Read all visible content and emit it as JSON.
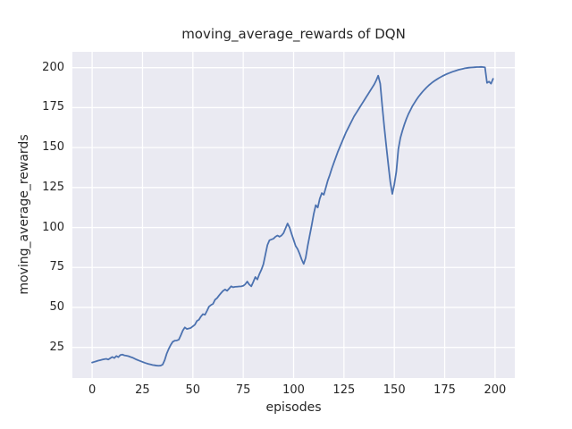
{
  "figure": {
    "background_color": "#FFFFFF",
    "panel_color": "#EAEAF2",
    "grid_color": "#FFFFFF",
    "text_color": "#262626"
  },
  "chart_data": {
    "type": "line",
    "title": "moving_average_rewards of DQN",
    "xlabel": "episodes",
    "ylabel": "moving_average_rewards",
    "x_ticks": [
      0,
      25,
      50,
      75,
      100,
      125,
      150,
      175,
      200
    ],
    "y_ticks": [
      25,
      50,
      75,
      100,
      125,
      150,
      175,
      200
    ],
    "xlim": [
      -9.8,
      209.8
    ],
    "ylim": [
      5.8,
      209.9
    ],
    "grid": true,
    "legend_position": "none",
    "series": [
      {
        "name": "moving_average_rewards",
        "color": "#4C72B0",
        "line_width": 1.8,
        "points": [
          [
            0,
            15.5
          ],
          [
            1,
            15.9
          ],
          [
            2,
            16.3
          ],
          [
            3,
            16.7
          ],
          [
            4,
            17.0
          ],
          [
            5,
            17.3
          ],
          [
            6,
            17.6
          ],
          [
            7,
            17.8
          ],
          [
            8,
            17.4
          ],
          [
            9,
            18.2
          ],
          [
            10,
            19.0
          ],
          [
            11,
            18.3
          ],
          [
            12,
            19.6
          ],
          [
            13,
            18.9
          ],
          [
            14,
            20.2
          ],
          [
            15,
            20.5
          ],
          [
            16,
            20.0
          ],
          [
            17,
            19.8
          ],
          [
            18,
            19.5
          ],
          [
            19,
            19.0
          ],
          [
            20,
            18.6
          ],
          [
            21,
            18.0
          ],
          [
            22,
            17.4
          ],
          [
            23,
            16.9
          ],
          [
            24,
            16.4
          ],
          [
            25,
            15.9
          ],
          [
            26,
            15.4
          ],
          [
            27,
            15.0
          ],
          [
            28,
            14.6
          ],
          [
            29,
            14.3
          ],
          [
            30,
            14.0
          ],
          [
            31,
            13.8
          ],
          [
            32,
            13.6
          ],
          [
            33,
            13.5
          ],
          [
            34,
            13.6
          ],
          [
            35,
            14.2
          ],
          [
            36,
            17.0
          ],
          [
            37,
            21.0
          ],
          [
            38,
            24.0
          ],
          [
            39,
            26.5
          ],
          [
            40,
            28.5
          ],
          [
            41,
            29.2
          ],
          [
            42,
            29.3
          ],
          [
            43,
            29.8
          ],
          [
            44,
            32.5
          ],
          [
            45,
            35.5
          ],
          [
            46,
            37.5
          ],
          [
            47,
            36.5
          ],
          [
            48,
            36.8
          ],
          [
            49,
            37.2
          ],
          [
            50,
            38.2
          ],
          [
            51,
            39.2
          ],
          [
            52,
            41.5
          ],
          [
            53,
            42.3
          ],
          [
            54,
            44.3
          ],
          [
            55,
            45.8
          ],
          [
            56,
            45.4
          ],
          [
            57,
            47.8
          ],
          [
            58,
            50.5
          ],
          [
            59,
            51.5
          ],
          [
            60,
            52.2
          ],
          [
            61,
            54.8
          ],
          [
            62,
            55.8
          ],
          [
            63,
            57.5
          ],
          [
            64,
            59.0
          ],
          [
            65,
            60.4
          ],
          [
            66,
            61.2
          ],
          [
            67,
            60.4
          ],
          [
            68,
            61.8
          ],
          [
            69,
            63.2
          ],
          [
            70,
            62.6
          ],
          [
            71,
            62.9
          ],
          [
            72,
            63.0
          ],
          [
            73,
            63.1
          ],
          [
            74,
            63.2
          ],
          [
            75,
            63.5
          ],
          [
            76,
            64.5
          ],
          [
            77,
            66.2
          ],
          [
            78,
            64.3
          ],
          [
            79,
            63.2
          ],
          [
            80,
            66.0
          ],
          [
            81,
            69.0
          ],
          [
            82,
            67.5
          ],
          [
            83,
            70.8
          ],
          [
            84,
            73.5
          ],
          [
            85,
            77.0
          ],
          [
            86,
            83.0
          ],
          [
            87,
            89.0
          ],
          [
            88,
            92.0
          ],
          [
            89,
            92.5
          ],
          [
            90,
            93.0
          ],
          [
            91,
            94.2
          ],
          [
            92,
            95.0
          ],
          [
            93,
            94.2
          ],
          [
            94,
            95.0
          ],
          [
            95,
            96.5
          ],
          [
            96,
            99.5
          ],
          [
            97,
            102.5
          ],
          [
            98,
            100.0
          ],
          [
            99,
            96.0
          ],
          [
            100,
            92.3
          ],
          [
            101,
            88.5
          ],
          [
            102,
            86.5
          ],
          [
            103,
            83.5
          ],
          [
            104,
            80.0
          ],
          [
            105,
            77.2
          ],
          [
            106,
            81.0
          ],
          [
            107,
            88.5
          ],
          [
            108,
            95.0
          ],
          [
            109,
            101.5
          ],
          [
            110,
            108.5
          ],
          [
            111,
            114.0
          ],
          [
            112,
            112.5
          ],
          [
            113,
            118.0
          ],
          [
            114,
            121.5
          ],
          [
            115,
            120.5
          ],
          [
            116,
            125.0
          ],
          [
            117,
            129.5
          ],
          [
            118,
            133.0
          ],
          [
            119,
            137.0
          ],
          [
            120,
            140.5
          ],
          [
            121,
            144.0
          ],
          [
            122,
            147.5
          ],
          [
            123,
            150.5
          ],
          [
            124,
            153.5
          ],
          [
            125,
            156.5
          ],
          [
            126,
            159.5
          ],
          [
            127,
            162.0
          ],
          [
            128,
            164.5
          ],
          [
            129,
            167.0
          ],
          [
            130,
            169.5
          ],
          [
            131,
            171.5
          ],
          [
            132,
            173.5
          ],
          [
            133,
            175.5
          ],
          [
            134,
            177.5
          ],
          [
            135,
            179.5
          ],
          [
            136,
            181.5
          ],
          [
            137,
            183.5
          ],
          [
            138,
            185.5
          ],
          [
            139,
            187.5
          ],
          [
            140,
            189.5
          ],
          [
            141,
            192.0
          ],
          [
            142,
            195.0
          ],
          [
            143,
            190.0
          ],
          [
            144,
            176.0
          ],
          [
            145,
            163.0
          ],
          [
            146,
            151.0
          ],
          [
            147,
            139.5
          ],
          [
            148,
            128.5
          ],
          [
            149,
            121.0
          ],
          [
            150,
            127.0
          ],
          [
            151,
            135.0
          ],
          [
            152,
            149.0
          ],
          [
            153,
            156.0
          ],
          [
            154,
            160.5
          ],
          [
            155,
            164.5
          ],
          [
            156,
            168.0
          ],
          [
            157,
            171.0
          ],
          [
            158,
            173.5
          ],
          [
            159,
            176.0
          ],
          [
            160,
            178.0
          ],
          [
            161,
            180.0
          ],
          [
            162,
            181.8
          ],
          [
            163,
            183.4
          ],
          [
            164,
            184.9
          ],
          [
            165,
            186.3
          ],
          [
            166,
            187.6
          ],
          [
            167,
            188.8
          ],
          [
            168,
            189.9
          ],
          [
            169,
            190.9
          ],
          [
            170,
            191.8
          ],
          [
            171,
            192.6
          ],
          [
            172,
            193.4
          ],
          [
            173,
            194.1
          ],
          [
            174,
            194.8
          ],
          [
            175,
            195.4
          ],
          [
            176,
            196.0
          ],
          [
            177,
            196.5
          ],
          [
            178,
            197.0
          ],
          [
            179,
            197.5
          ],
          [
            180,
            197.9
          ],
          [
            181,
            198.3
          ],
          [
            182,
            198.7
          ],
          [
            183,
            199.0
          ],
          [
            184,
            199.3
          ],
          [
            185,
            199.6
          ],
          [
            186,
            199.8
          ],
          [
            187,
            200.0
          ],
          [
            188,
            200.1
          ],
          [
            189,
            200.2
          ],
          [
            190,
            200.3
          ],
          [
            191,
            200.4
          ],
          [
            192,
            200.4
          ],
          [
            193,
            200.5
          ],
          [
            194,
            200.4
          ],
          [
            195,
            200.2
          ],
          [
            196,
            190.5
          ],
          [
            197,
            191.3
          ],
          [
            198,
            190.0
          ],
          [
            199,
            193.0
          ]
        ]
      }
    ]
  }
}
